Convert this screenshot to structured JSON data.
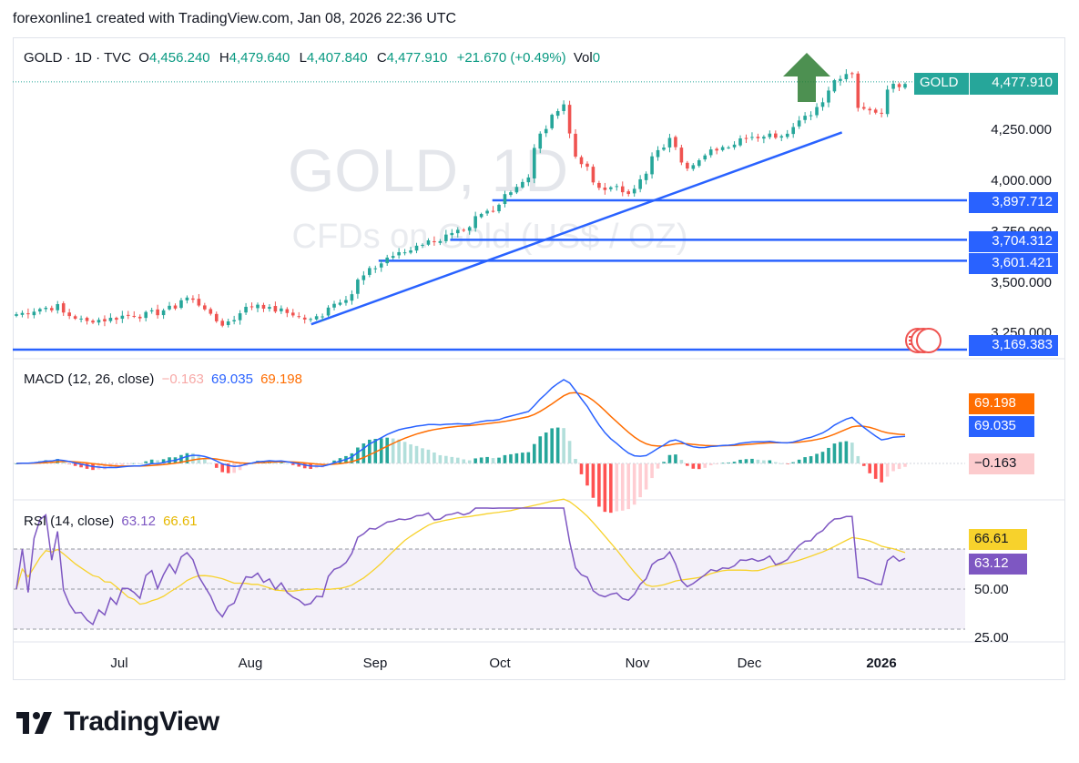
{
  "header": {
    "text": "forexonline1 created with TradingView.com, Jan 08, 2026 22:36 UTC"
  },
  "legend": {
    "symbol": "GOLD · 1D · TVC",
    "o_label": "O",
    "o_value": "4,456.240",
    "h_label": "H",
    "h_value": "4,479.640",
    "l_label": "L",
    "l_value": "4,407.840",
    "c_label": "C",
    "c_value": "4,477.910",
    "change": "+21.670 (+0.49%)",
    "vol_label": "Vol",
    "vol_value": "0"
  },
  "watermark": {
    "line1": "GOLD, 1D",
    "line2": "CFDs on Gold (US$ / OZ)"
  },
  "price_tag": {
    "symbol": "GOLD",
    "value": "4,477.910"
  },
  "level_labels": [
    "3,897.712",
    "3,704.312",
    "3,601.421",
    "3,169.383"
  ],
  "price_axis": [
    "4,250.000",
    "4,000.000",
    "3,750.000",
    "3,500.000",
    "3,250.000"
  ],
  "macd": {
    "title": "MACD (12, 26, close)",
    "hist": "−0.163",
    "macd": "69.035",
    "signal": "69.198",
    "axis_signal": "69.198",
    "axis_macd": "69.035",
    "axis_hist": "−0.163"
  },
  "rsi": {
    "title": "RSI (14, close)",
    "value": "63.12",
    "ma": "66.61",
    "axis_ma": "66.61",
    "axis_value": "63.12",
    "axis_50": "50.00",
    "axis_25": "25.00"
  },
  "time_axis": [
    "Jul",
    "Aug",
    "Sep",
    "Oct",
    "Nov",
    "Dec",
    "2026"
  ],
  "brand": {
    "name": "TradingView"
  },
  "colors": {
    "up": "#26a69a",
    "down": "#ef5350",
    "blue": "#2962ff",
    "orange": "#ff6d00",
    "rsi": "#7e57c2",
    "rsi_ma": "#f7d22c",
    "tag": "#26a69a"
  },
  "chart_data": [
    {
      "type": "candlestick",
      "title": "GOLD · 1D · TVC",
      "x_range": [
        "2025-06-11",
        "2026-01-08"
      ],
      "ylim": [
        3169,
        4480
      ],
      "close_path": [
        [
          "2025-06-11",
          3340
        ],
        [
          "2025-06-20",
          3380
        ],
        [
          "2025-06-27",
          3300
        ],
        [
          "2025-07-07",
          3330
        ],
        [
          "2025-07-15",
          3350
        ],
        [
          "2025-07-22",
          3420
        ],
        [
          "2025-07-30",
          3290
        ],
        [
          "2025-08-07",
          3390
        ],
        [
          "2025-08-15",
          3340
        ],
        [
          "2025-08-20",
          3310
        ],
        [
          "2025-08-28",
          3420
        ],
        [
          "2025-09-05",
          3590
        ],
        [
          "2025-09-16",
          3690
        ],
        [
          "2025-09-25",
          3740
        ],
        [
          "2025-10-03",
          3880
        ],
        [
          "2025-10-10",
          4000
        ],
        [
          "2025-10-16",
          4320
        ],
        [
          "2025-10-20",
          4370
        ],
        [
          "2025-10-22",
          4100
        ],
        [
          "2025-10-28",
          3960
        ],
        [
          "2025-11-04",
          3940
        ],
        [
          "2025-11-13",
          4190
        ],
        [
          "2025-11-18",
          4070
        ],
        [
          "2025-11-25",
          4150
        ],
        [
          "2025-12-02",
          4210
        ],
        [
          "2025-12-10",
          4220
        ],
        [
          "2025-12-17",
          4330
        ],
        [
          "2025-12-23",
          4480
        ],
        [
          "2025-12-26",
          4520
        ],
        [
          "2025-12-29",
          4340
        ],
        [
          "2026-01-02",
          4330
        ],
        [
          "2026-01-05",
          4450
        ],
        [
          "2026-01-08",
          4478
        ]
      ],
      "horizontal_levels": [
        3897.712,
        3704.312,
        3601.421,
        3169.383
      ],
      "trendline": [
        [
          "2025-08-20",
          3290
        ],
        [
          "2025-12-24",
          4230
        ]
      ],
      "annotations": [
        "up-arrow"
      ]
    },
    {
      "type": "line",
      "title": "MACD (12, 26, close)",
      "series": [
        {
          "name": "MACD",
          "last": 69.035
        },
        {
          "name": "Signal",
          "last": 69.198
        },
        {
          "name": "Histogram",
          "last": -0.163
        }
      ]
    },
    {
      "type": "line",
      "title": "RSI (14, close)",
      "ylim": [
        25,
        80
      ],
      "levels": [
        70,
        50,
        30
      ],
      "series": [
        {
          "name": "RSI",
          "last": 63.12
        },
        {
          "name": "RSI-based MA",
          "last": 66.61
        }
      ]
    }
  ]
}
